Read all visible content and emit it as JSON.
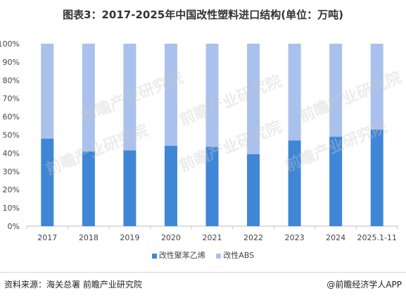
{
  "header": {
    "title": "图表3：2017-2025年中国改性塑料进口结构(单位：万吨)"
  },
  "footer": {
    "source": "资料来源：海关总署 前瞻产业研究院",
    "credit": "@前瞻经济学人APP"
  },
  "watermark": {
    "text": "前瞻产业研究院"
  },
  "colors": {
    "series1": "#3f86d6",
    "series2": "#a9c1ec",
    "axis": "#bfbfbf",
    "text": "#444444"
  },
  "chart_data": {
    "type": "bar",
    "stacked": true,
    "categories": [
      "2017",
      "2018",
      "2019",
      "2020",
      "2021",
      "2022",
      "2023",
      "2024",
      "2025.1-11"
    ],
    "series": [
      {
        "name": "改性聚苯乙烯",
        "values": [
          48,
          41,
          41.5,
          44,
          43.5,
          39.5,
          47,
          49,
          53
        ]
      },
      {
        "name": "改性ABS",
        "values": [
          52,
          59,
          58.5,
          56,
          56.5,
          60.5,
          53,
          51,
          47
        ]
      }
    ],
    "yticks": [
      "0%",
      "10%",
      "20%",
      "30%",
      "40%",
      "50%",
      "60%",
      "70%",
      "80%",
      "90%",
      "100%"
    ],
    "ylim": [
      0,
      100
    ],
    "legend_position": "bottom",
    "grid": false
  }
}
